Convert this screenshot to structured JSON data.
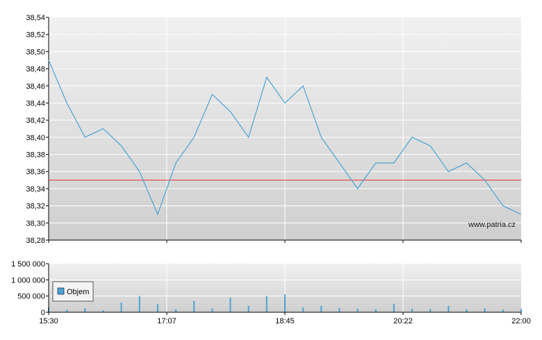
{
  "chart_data": [
    {
      "type": "line",
      "title": "",
      "xlabel": "",
      "ylabel": "",
      "ylim": [
        38.28,
        38.54
      ],
      "y_ticks": [
        "38,54",
        "38,52",
        "38,50",
        "38,48",
        "38,46",
        "38,44",
        "38,42",
        "38,40",
        "38,38",
        "38,36",
        "38,34",
        "38,32",
        "38,30",
        "38,28"
      ],
      "x_ticks": [
        "15:30",
        "17:07",
        "18:45",
        "20:22",
        "22:00"
      ],
      "reference_line": {
        "value": 38.35,
        "color": "#e03030"
      },
      "line_color": "#4aa3d0",
      "grid": true,
      "watermark": "www.patria.cz",
      "x": [
        "15:30",
        "15:45",
        "16:00",
        "16:15",
        "16:30",
        "16:45",
        "17:00",
        "17:15",
        "17:30",
        "17:45",
        "18:00",
        "18:15",
        "18:30",
        "18:45",
        "19:00",
        "19:15",
        "19:30",
        "19:45",
        "20:00",
        "20:15",
        "20:30",
        "20:45",
        "21:00",
        "21:15",
        "21:30",
        "21:45",
        "22:00"
      ],
      "values": [
        38.49,
        38.44,
        38.4,
        38.41,
        38.39,
        38.36,
        38.31,
        38.37,
        38.4,
        38.45,
        38.43,
        38.4,
        38.47,
        38.44,
        38.46,
        38.4,
        38.37,
        38.34,
        38.37,
        38.37,
        38.4,
        38.39,
        38.36,
        38.37,
        38.35,
        38.32,
        38.31
      ]
    },
    {
      "type": "bar",
      "title": "",
      "ylim": [
        0,
        1500000
      ],
      "y_ticks": [
        "1 500 000",
        "1 000 000",
        "500 000",
        "0"
      ],
      "legend": "Objem",
      "legend_placement": "top-left",
      "bar_color": "#4aa3d0",
      "x": [
        "15:30",
        "15:45",
        "16:00",
        "16:15",
        "16:30",
        "16:45",
        "17:00",
        "17:15",
        "17:30",
        "17:45",
        "18:00",
        "18:15",
        "18:30",
        "18:45",
        "19:00",
        "19:15",
        "19:30",
        "19:45",
        "20:00",
        "20:15",
        "20:30",
        "20:45",
        "21:00",
        "21:15",
        "21:30",
        "21:45",
        "22:00"
      ],
      "values": [
        150000,
        80000,
        120000,
        60000,
        300000,
        500000,
        250000,
        90000,
        350000,
        120000,
        450000,
        200000,
        500000,
        550000,
        150000,
        200000,
        130000,
        110000,
        90000,
        260000,
        110000,
        100000,
        200000,
        90000,
        120000,
        80000,
        100000
      ]
    }
  ]
}
